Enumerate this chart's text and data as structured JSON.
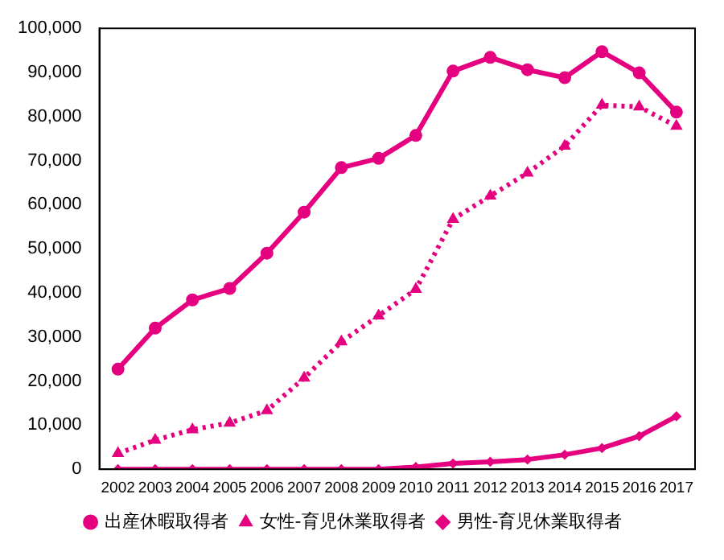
{
  "chart_data": {
    "type": "line",
    "categories": [
      "2002",
      "2003",
      "2004",
      "2005",
      "2006",
      "2007",
      "2008",
      "2009",
      "2010",
      "2011",
      "2012",
      "2013",
      "2014",
      "2015",
      "2016",
      "2017"
    ],
    "series": [
      {
        "name": "出産休暇取得者",
        "color": "#e4007f",
        "marker": "circle",
        "line_style": "solid",
        "values": [
          22700,
          32000,
          38400,
          41000,
          49000,
          58300,
          68400,
          70500,
          75700,
          90300,
          93400,
          90600,
          88800,
          94700,
          89900,
          81000
        ]
      },
      {
        "name": "女性-育児休業取得者",
        "color": "#e4007f",
        "marker": "triangle",
        "line_style": "dotted",
        "values": [
          3600,
          6600,
          9000,
          10500,
          13300,
          20700,
          28900,
          34800,
          40800,
          56700,
          62000,
          67200,
          73300,
          82600,
          82200,
          77800
        ]
      },
      {
        "name": "男性-育児休業取得者",
        "color": "#e4007f",
        "marker": "diamond",
        "line_style": "solid",
        "values": [
          0,
          0,
          0,
          0,
          0,
          0,
          0,
          0,
          500,
          1300,
          1700,
          2200,
          3300,
          4800,
          7500,
          12000
        ]
      }
    ],
    "ylim": [
      0,
      100000
    ],
    "yticks": [
      0,
      {
        "value": 10000,
        "label": "10,000"
      },
      {
        "value": 20000,
        "label": "20,000"
      },
      {
        "value": 30000,
        "label": "30,000"
      },
      {
        "value": 40000,
        "label": "40,000"
      },
      {
        "value": 50000,
        "label": "50,000"
      },
      {
        "value": 60000,
        "label": "60,000"
      },
      {
        "value": 70000,
        "label": "70,000"
      },
      {
        "value": 80000,
        "label": "80,000"
      },
      {
        "value": 90000,
        "label": "90,000"
      },
      {
        "value": 100000,
        "label": "100,000"
      }
    ],
    "grid": false,
    "legend": "bottom"
  }
}
